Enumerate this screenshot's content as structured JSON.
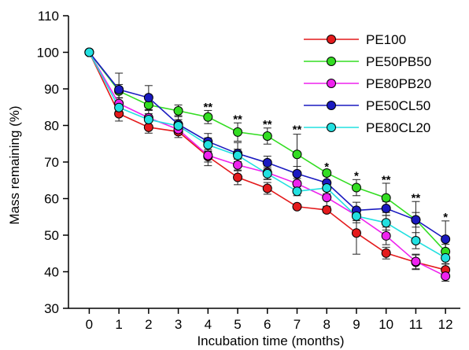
{
  "chart_data": {
    "type": "line",
    "xlabel": "Incubation time (months)",
    "ylabel": "Mass remaining (%)",
    "xlim": [
      -0.7,
      12.5
    ],
    "ylim": [
      30,
      110
    ],
    "x_ticks": [
      0,
      1,
      2,
      3,
      4,
      5,
      6,
      7,
      8,
      9,
      10,
      11,
      12
    ],
    "y_ticks": [
      30,
      40,
      50,
      60,
      70,
      80,
      90,
      100,
      110
    ],
    "grid": false,
    "legend_position": "top-right",
    "x": [
      0,
      1,
      2,
      3,
      4,
      5,
      6,
      7,
      8,
      9,
      10,
      11,
      12
    ],
    "series": [
      {
        "name": "PE100",
        "color": "#e41a1c",
        "values": [
          100,
          83.2,
          79.5,
          78.3,
          71.5,
          65.8,
          62.8,
          57.8,
          56.9,
          50.6,
          45.1,
          42.6,
          40.5
        ],
        "errors": [
          0,
          2.0,
          1.6,
          1.6,
          1.5,
          2.0,
          1.6,
          0.6,
          0.8,
          5.8,
          1.6,
          2.0,
          1.6
        ]
      },
      {
        "name": "PE50PB50",
        "color": "#33dd22",
        "values": [
          100,
          89.4,
          85.6,
          84.0,
          82.3,
          78.2,
          77.1,
          72.1,
          67.0,
          63.0,
          60.2,
          54.2,
          45.5
        ],
        "errors": [
          0,
          1.8,
          1.5,
          1.6,
          1.8,
          2.5,
          2.2,
          5.5,
          0.8,
          2.2,
          4.0,
          5.0,
          2.0
        ]
      },
      {
        "name": "PE80PB20",
        "color": "#ee22ee",
        "values": [
          100,
          86.0,
          82.1,
          78.9,
          71.8,
          69.2,
          67.1,
          64.1,
          60.3,
          55.4,
          49.8,
          42.8,
          38.8
        ],
        "errors": [
          0,
          1.5,
          2.2,
          1.4,
          2.8,
          1.6,
          1.8,
          1.4,
          2.4,
          2.0,
          2.4,
          2.0,
          1.4
        ]
      },
      {
        "name": "PE50CL50",
        "color": "#1a1ac0",
        "values": [
          100,
          89.8,
          87.6,
          80.3,
          75.6,
          72.3,
          69.8,
          66.8,
          64.3,
          56.8,
          57.3,
          54.2,
          48.9
        ],
        "errors": [
          0,
          4.5,
          3.3,
          2.4,
          2.2,
          3.0,
          1.8,
          2.0,
          2.0,
          2.2,
          1.9,
          2.0,
          5.0
        ]
      },
      {
        "name": "PE80CL20",
        "color": "#22e0e0",
        "values": [
          100,
          84.9,
          81.6,
          79.9,
          74.7,
          71.8,
          66.8,
          62.0,
          62.9,
          55.2,
          53.4,
          48.5,
          43.8
        ],
        "errors": [
          0,
          1.8,
          1.6,
          1.7,
          1.9,
          1.7,
          1.6,
          1.2,
          1.6,
          1.2,
          2.0,
          2.2,
          1.6
        ]
      }
    ],
    "annotations": [
      {
        "x": 4,
        "y": 85.1,
        "text": "**"
      },
      {
        "x": 5,
        "y": 81.7,
        "text": "**"
      },
      {
        "x": 6,
        "y": 80.3,
        "text": "**"
      },
      {
        "x": 7,
        "y": 78.9,
        "text": "**"
      },
      {
        "x": 8,
        "y": 68.7,
        "text": "*"
      },
      {
        "x": 9,
        "y": 66.2,
        "text": "*"
      },
      {
        "x": 10,
        "y": 65.2,
        "text": "**"
      },
      {
        "x": 11,
        "y": 60.2,
        "text": "**"
      },
      {
        "x": 12,
        "y": 55.0,
        "text": "*"
      }
    ]
  }
}
